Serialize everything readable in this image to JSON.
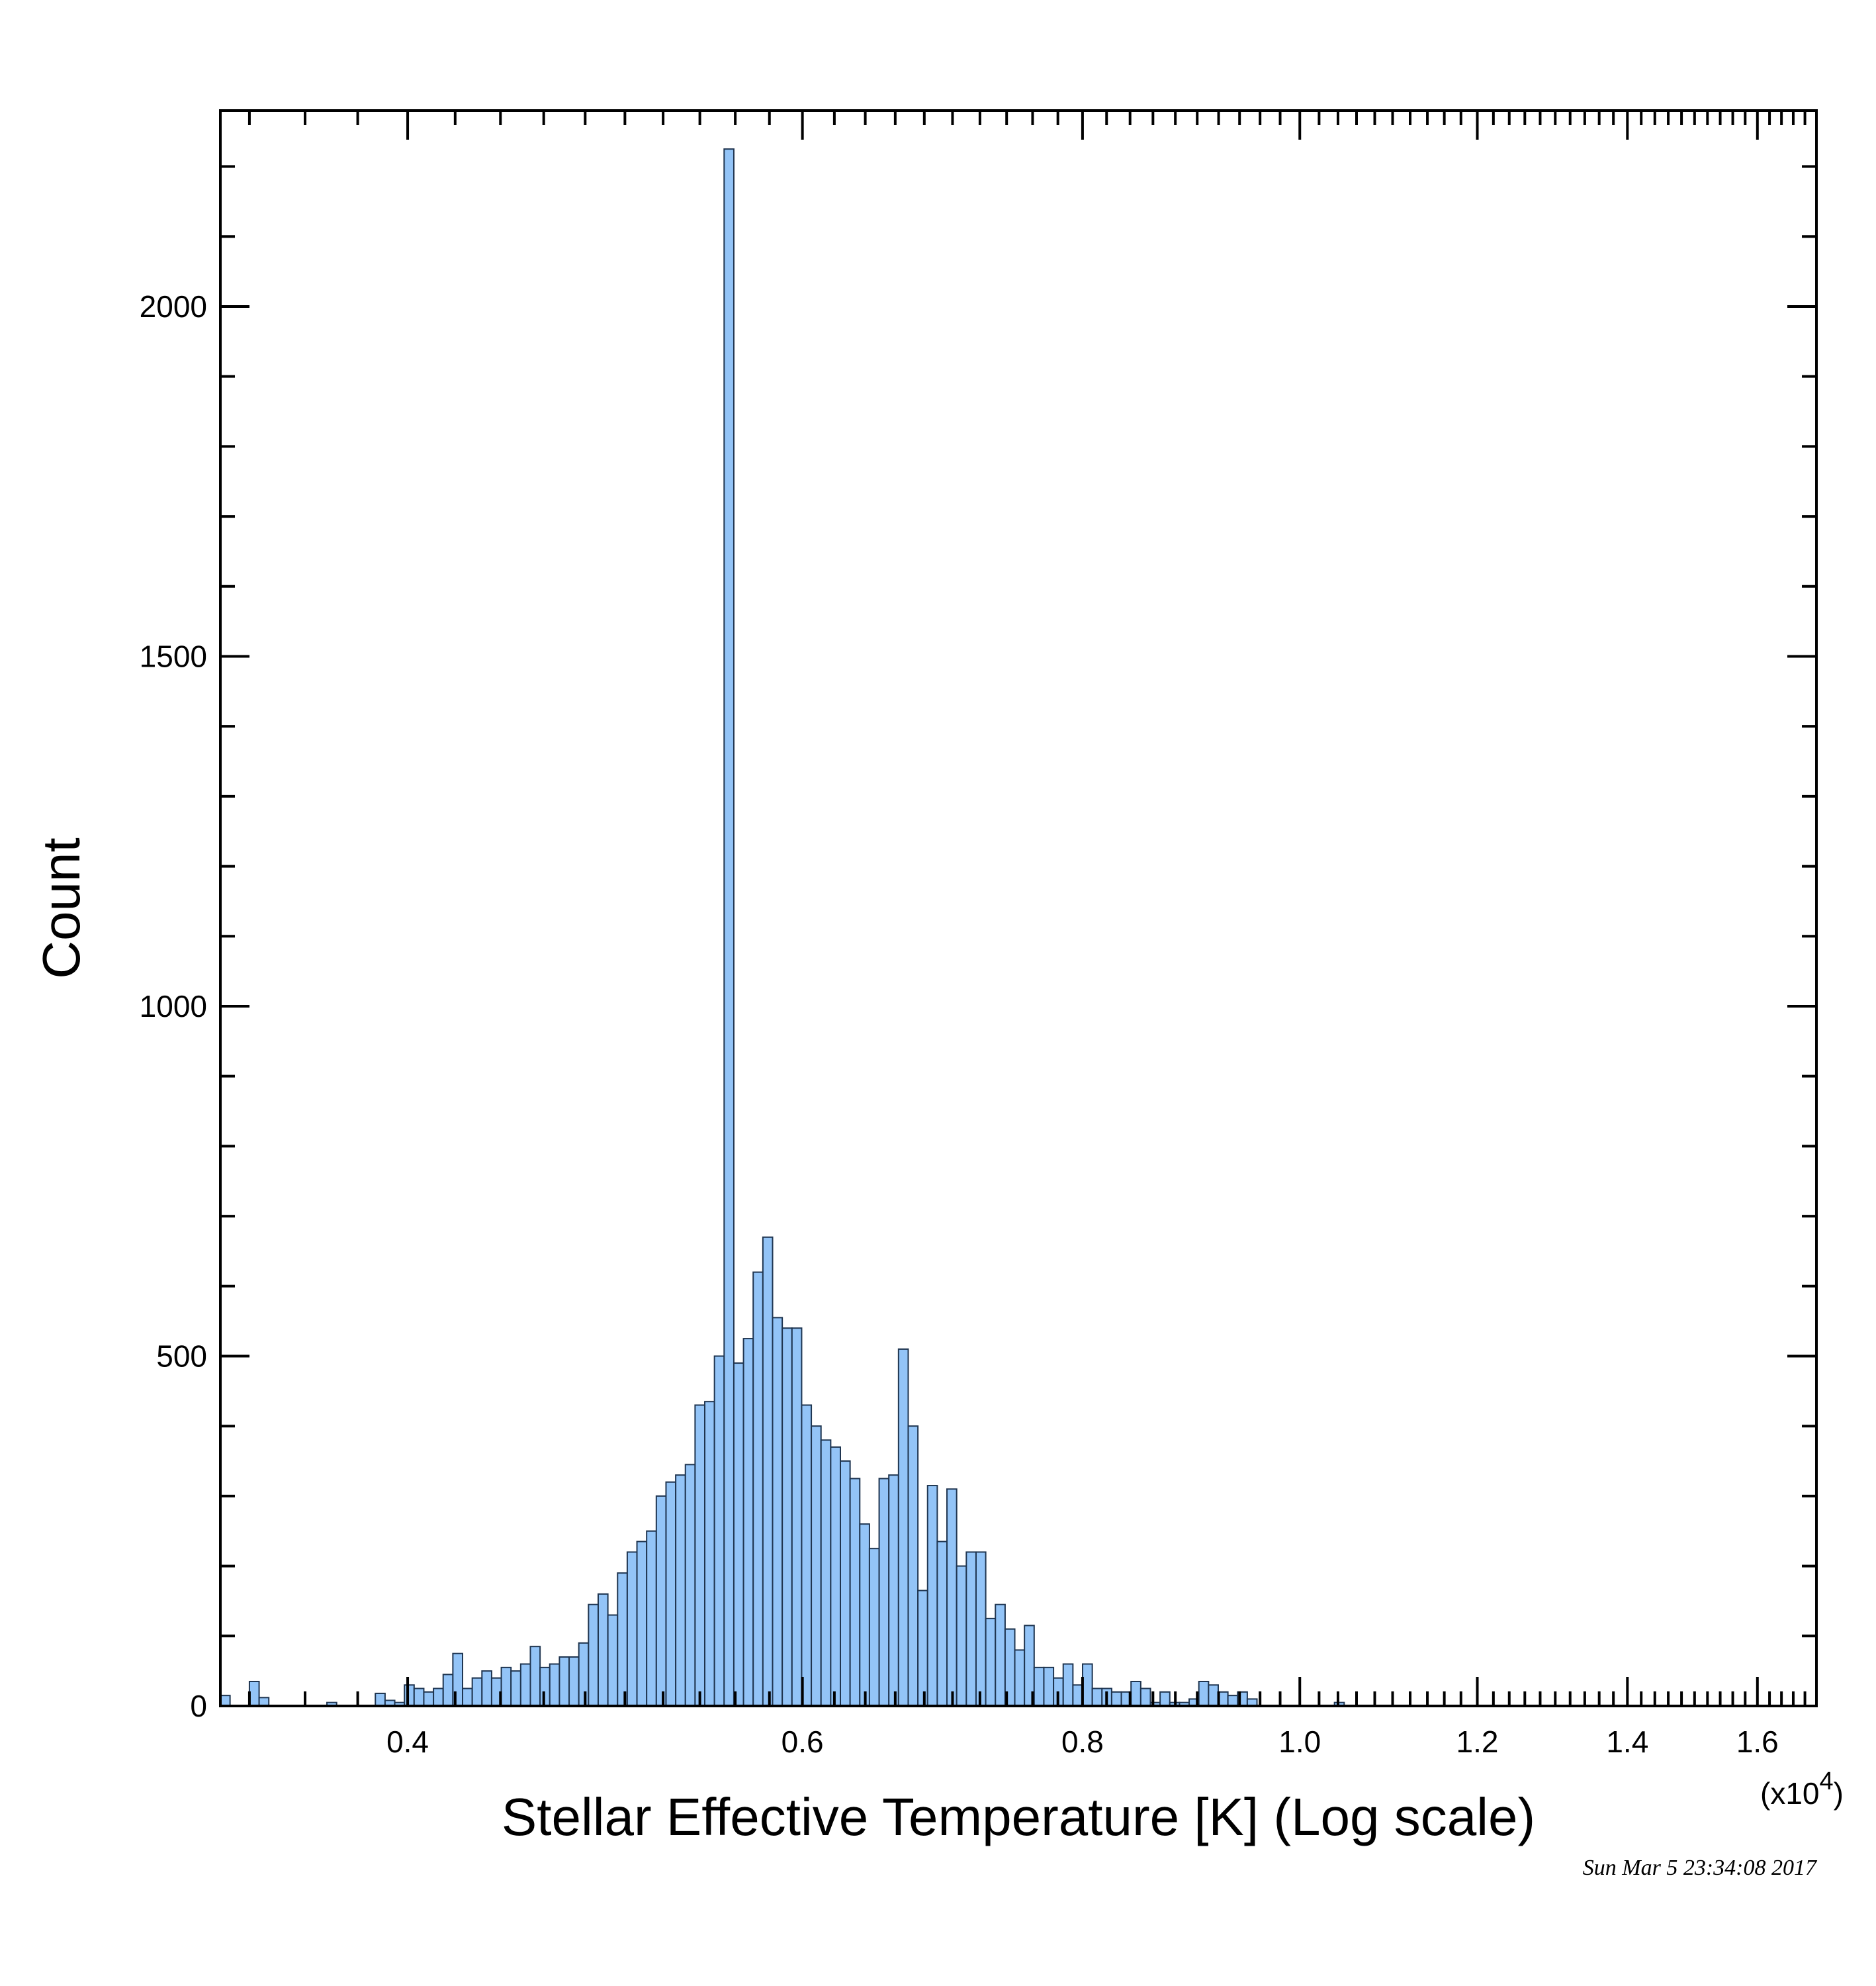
{
  "chart_data": {
    "type": "bar",
    "title": "",
    "xlabel": "Stellar Effective Temperature [K] (Log scale)",
    "ylabel": "Count",
    "x_scale": "log",
    "x_multiplier_label": "(x10",
    "x_multiplier_exponent": "4",
    "x_multiplier_close": ")",
    "xlim": [
      3300,
      17000
    ],
    "ylim": [
      0,
      2280
    ],
    "x_ticks": [
      {
        "value": 4000,
        "label": "0.4"
      },
      {
        "value": 6000,
        "label": "0.6"
      },
      {
        "value": 8000,
        "label": "0.8"
      },
      {
        "value": 10000,
        "label": "1.0"
      },
      {
        "value": 12000,
        "label": "1.2"
      },
      {
        "value": 14000,
        "label": "1.4"
      },
      {
        "value": 16000,
        "label": "1.6"
      }
    ],
    "y_ticks": [
      {
        "value": 0,
        "label": "0"
      },
      {
        "value": 500,
        "label": "500"
      },
      {
        "value": 1000,
        "label": "1000"
      },
      {
        "value": 1500,
        "label": "1500"
      },
      {
        "value": 2000,
        "label": "2000"
      }
    ],
    "bin_edge_start": 3300,
    "bin_ratio": 1.01,
    "values": [
      15,
      0,
      0,
      35,
      12,
      0,
      0,
      0,
      0,
      0,
      0,
      5,
      0,
      0,
      0,
      0,
      18,
      8,
      5,
      30,
      25,
      20,
      25,
      45,
      75,
      25,
      40,
      50,
      40,
      55,
      50,
      60,
      85,
      55,
      60,
      70,
      70,
      90,
      145,
      160,
      130,
      190,
      220,
      235,
      250,
      300,
      320,
      330,
      345,
      430,
      435,
      500,
      2225,
      490,
      525,
      620,
      670,
      555,
      540,
      540,
      430,
      400,
      380,
      370,
      350,
      325,
      260,
      225,
      325,
      330,
      510,
      400,
      165,
      315,
      235,
      310,
      200,
      220,
      220,
      125,
      145,
      110,
      80,
      115,
      55,
      55,
      40,
      60,
      30,
      60,
      25,
      25,
      20,
      20,
      35,
      25,
      5,
      20,
      5,
      5,
      10,
      35,
      30,
      20,
      15,
      20,
      10,
      0,
      0,
      0,
      0,
      0,
      0,
      0,
      0,
      5,
      0,
      0,
      0,
      0,
      0,
      0,
      0,
      0,
      0,
      0,
      0,
      0,
      0,
      0,
      0,
      0,
      0,
      0,
      0,
      0,
      0,
      0,
      0,
      0,
      0,
      0,
      0,
      0,
      0,
      0,
      0,
      0,
      0,
      0,
      0,
      0,
      0,
      0,
      0,
      0,
      0,
      0,
      0,
      0,
      0,
      0,
      0,
      0,
      0
    ]
  },
  "timestamp": "Sun Mar  5 23:34:08 2017"
}
